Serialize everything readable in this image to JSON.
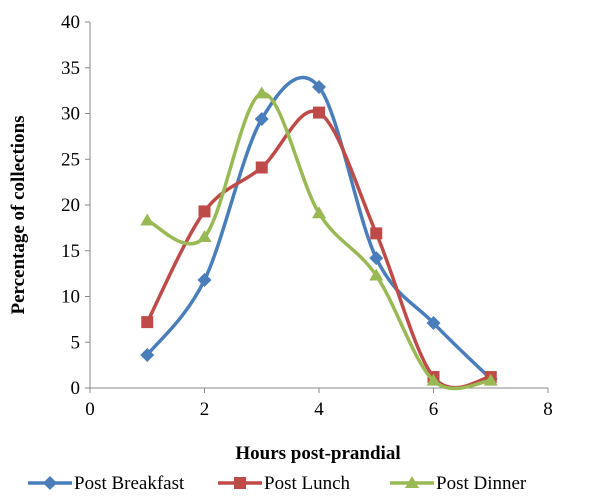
{
  "chart_data": {
    "type": "line",
    "xlabel": "Hours post-prandial",
    "ylabel": "Percentage of collections",
    "xlim": [
      0,
      8
    ],
    "ylim": [
      0,
      40
    ],
    "xticks": [
      "0",
      "2",
      "4",
      "6",
      "8"
    ],
    "yticks": [
      "0",
      "5",
      "10",
      "15",
      "20",
      "25",
      "30",
      "35",
      "40"
    ],
    "grid": false,
    "legend": "bottom",
    "smooth": true,
    "series": [
      {
        "name": "Post Breakfast",
        "color": "#4A7EBB",
        "marker": "diamond",
        "points": [
          [
            1,
            3.6
          ],
          [
            2,
            11.8
          ],
          [
            3,
            29.4
          ],
          [
            4,
            32.9
          ],
          [
            5,
            14.2
          ],
          [
            6,
            7.1
          ],
          [
            7,
            1.0
          ]
        ]
      },
      {
        "name": "Post Lunch",
        "color": "#BE4B48",
        "marker": "square",
        "points": [
          [
            1,
            7.2
          ],
          [
            2,
            19.3
          ],
          [
            3,
            24.1
          ],
          [
            4,
            30.1
          ],
          [
            5,
            16.9
          ],
          [
            6,
            1.2
          ],
          [
            7,
            1.2
          ]
        ]
      },
      {
        "name": "Post Dinner",
        "color": "#98B954",
        "marker": "triangle",
        "points": [
          [
            1,
            18.3
          ],
          [
            2,
            16.5
          ],
          [
            3,
            32.2
          ],
          [
            4,
            19.1
          ],
          [
            5,
            12.3
          ],
          [
            6,
            0.8
          ],
          [
            7,
            0.8
          ]
        ]
      }
    ]
  }
}
